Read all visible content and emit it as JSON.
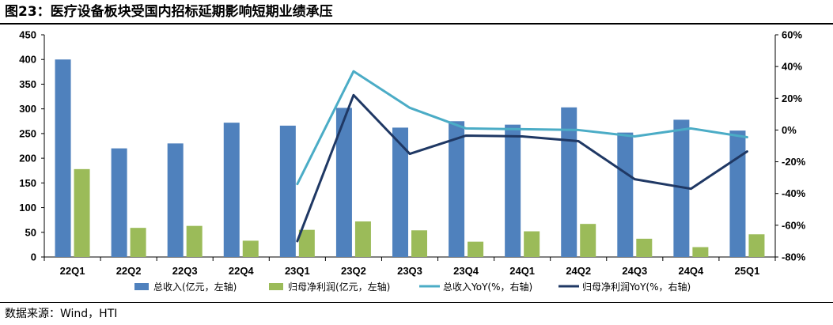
{
  "figure": {
    "title": "图23：医疗设备板块受国内招标延期影响短期业绩承压",
    "source": "数据来源：Wind，HTI"
  },
  "colors": {
    "revenue_bar": "#4F81BD",
    "profit_bar": "#9BBB59",
    "revenue_yoy_line": "#4BACC6",
    "profit_yoy_line": "#1F3864"
  },
  "chart_data": {
    "type": "bar",
    "categories": [
      "22Q1",
      "22Q2",
      "22Q3",
      "22Q4",
      "23Q1",
      "23Q2",
      "23Q3",
      "23Q4",
      "24Q1",
      "24Q2",
      "24Q3",
      "24Q4",
      "25Q1"
    ],
    "series": [
      {
        "name": "总收入(亿元，左轴)",
        "type": "bar",
        "axis": "left",
        "values": [
          400,
          220,
          230,
          272,
          266,
          302,
          262,
          275,
          268,
          303,
          252,
          278,
          256
        ]
      },
      {
        "name": "归母净利润(亿元，左轴)",
        "type": "bar",
        "axis": "left",
        "values": [
          178,
          59,
          63,
          33,
          55,
          72,
          54,
          31,
          52,
          67,
          37,
          20,
          46
        ]
      },
      {
        "name": "总收入YoY(%，右轴)",
        "type": "line",
        "axis": "right",
        "values": [
          null,
          null,
          null,
          null,
          -34,
          37,
          14,
          1,
          0.5,
          0,
          -4,
          1,
          -4.5
        ]
      },
      {
        "name": "归母净利润YoY(%，右轴)",
        "type": "line",
        "axis": "right",
        "values": [
          null,
          null,
          null,
          null,
          -70,
          22,
          -15,
          -3.5,
          -4,
          -7,
          -31,
          -37,
          -13.5
        ]
      }
    ],
    "y_left": {
      "ylim": [
        0,
        450
      ],
      "ticks": [
        "0",
        "50",
        "100",
        "150",
        "200",
        "250",
        "300",
        "350",
        "400",
        "450"
      ]
    },
    "y_right": {
      "ylim": [
        -80,
        60
      ],
      "ticks": [
        "-80%",
        "-60%",
        "-40%",
        "-20%",
        "0%",
        "20%",
        "40%",
        "60%"
      ]
    },
    "grid": false,
    "legend_position": "bottom"
  }
}
